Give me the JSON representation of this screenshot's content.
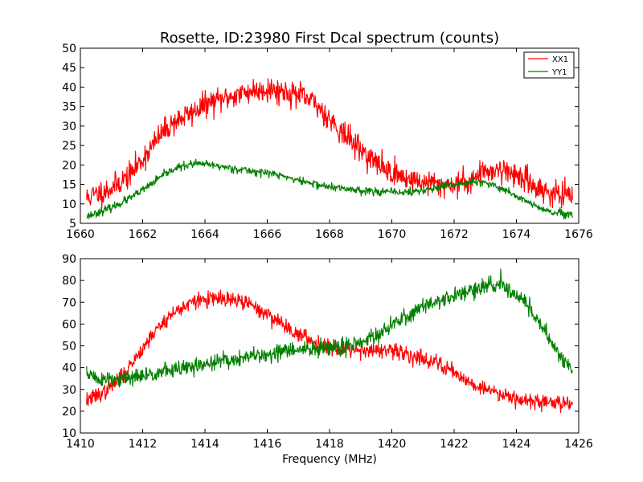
{
  "figure": {
    "title": "Rosette, ID:23980 First Dcal spectrum (counts)",
    "xlabel": "Frequency (MHz)"
  },
  "colors": {
    "XX1": "#ff0000",
    "YY1": "#008000"
  },
  "chart_data": [
    {
      "type": "line",
      "title": "Rosette, ID:23980 First Dcal spectrum (counts)",
      "xlabel": "",
      "ylabel": "",
      "xlim": [
        1660,
        1676
      ],
      "ylim": [
        5,
        50
      ],
      "xticks": [
        "1660",
        "1662",
        "1664",
        "1666",
        "1668",
        "1670",
        "1672",
        "1674",
        "1676"
      ],
      "yticks": [
        "5",
        "10",
        "15",
        "20",
        "25",
        "30",
        "35",
        "40",
        "45",
        "50"
      ],
      "legend": {
        "placement": "top-right",
        "entries": [
          "XX1",
          "YY1"
        ]
      },
      "grid": false,
      "x_start": 1660.2,
      "x_end": 1675.8,
      "series": [
        {
          "name": "XX1",
          "color": "#ff0000",
          "profile": [
            [
              1660.2,
              11.5
            ],
            [
              1661.0,
              14.0
            ],
            [
              1661.6,
              17.5
            ],
            [
              1662.0,
              21.5
            ],
            [
              1662.6,
              28.0
            ],
            [
              1663.0,
              31.0
            ],
            [
              1663.6,
              33.5
            ],
            [
              1664.0,
              35.5
            ],
            [
              1664.6,
              37.0
            ],
            [
              1665.0,
              38.0
            ],
            [
              1665.5,
              39.0
            ],
            [
              1666.0,
              39.5
            ],
            [
              1666.5,
              39.0
            ],
            [
              1667.0,
              38.0
            ],
            [
              1667.5,
              36.0
            ],
            [
              1668.0,
              32.0
            ],
            [
              1668.5,
              27.5
            ],
            [
              1669.0,
              24.0
            ],
            [
              1669.5,
              20.5
            ],
            [
              1670.0,
              18.0
            ],
            [
              1670.5,
              16.5
            ],
            [
              1671.0,
              15.5
            ],
            [
              1671.5,
              15.0
            ],
            [
              1672.0,
              15.0
            ],
            [
              1672.5,
              16.0
            ],
            [
              1673.0,
              18.5
            ],
            [
              1673.5,
              19.0
            ],
            [
              1674.0,
              17.5
            ],
            [
              1674.5,
              15.0
            ],
            [
              1675.0,
              13.0
            ],
            [
              1675.8,
              11.5
            ]
          ],
          "noise": 1.6,
          "seed": 11
        },
        {
          "name": "YY1",
          "color": "#008000",
          "profile": [
            [
              1660.2,
              6.8
            ],
            [
              1661.0,
              9.0
            ],
            [
              1661.6,
              11.5
            ],
            [
              1662.0,
              13.5
            ],
            [
              1662.6,
              17.0
            ],
            [
              1663.0,
              19.0
            ],
            [
              1663.6,
              20.3
            ],
            [
              1664.0,
              20.2
            ],
            [
              1664.6,
              19.5
            ],
            [
              1665.0,
              19.0
            ],
            [
              1665.6,
              18.3
            ],
            [
              1666.0,
              18.0
            ],
            [
              1666.6,
              17.0
            ],
            [
              1667.0,
              16.0
            ],
            [
              1667.6,
              15.0
            ],
            [
              1668.0,
              14.3
            ],
            [
              1669.0,
              13.5
            ],
            [
              1670.0,
              13.0
            ],
            [
              1670.6,
              13.0
            ],
            [
              1671.0,
              13.5
            ],
            [
              1671.6,
              14.3
            ],
            [
              1672.0,
              15.0
            ],
            [
              1672.6,
              15.6
            ],
            [
              1673.0,
              15.3
            ],
            [
              1673.6,
              13.8
            ],
            [
              1674.0,
              12.0
            ],
            [
              1674.6,
              9.5
            ],
            [
              1675.0,
              8.0
            ],
            [
              1675.8,
              7.0
            ]
          ],
          "noise": 0.5,
          "seed": 23
        }
      ]
    },
    {
      "type": "line",
      "title": "",
      "xlabel": "Frequency (MHz)",
      "ylabel": "",
      "xlim": [
        1410,
        1426
      ],
      "ylim": [
        10,
        90
      ],
      "xticks": [
        "1410",
        "1412",
        "1414",
        "1416",
        "1418",
        "1420",
        "1422",
        "1424",
        "1426"
      ],
      "yticks": [
        "10",
        "20",
        "30",
        "40",
        "50",
        "60",
        "70",
        "80",
        "90"
      ],
      "grid": false,
      "x_start": 1410.2,
      "x_end": 1425.8,
      "series": [
        {
          "name": "XX1",
          "color": "#ff0000",
          "profile": [
            [
              1410.2,
              25
            ],
            [
              1410.8,
              29
            ],
            [
              1411.3,
              35
            ],
            [
              1411.8,
              45
            ],
            [
              1412.3,
              55
            ],
            [
              1412.8,
              63
            ],
            [
              1413.3,
              68
            ],
            [
              1413.8,
              71
            ],
            [
              1414.3,
              71.5
            ],
            [
              1414.8,
              71
            ],
            [
              1415.3,
              70
            ],
            [
              1415.8,
              66
            ],
            [
              1416.3,
              62
            ],
            [
              1416.8,
              57
            ],
            [
              1417.3,
              53
            ],
            [
              1417.8,
              50
            ],
            [
              1418.3,
              49
            ],
            [
              1418.8,
              48.5
            ],
            [
              1419.3,
              48
            ],
            [
              1419.8,
              47.5
            ],
            [
              1420.3,
              47
            ],
            [
              1420.8,
              45
            ],
            [
              1421.3,
              43
            ],
            [
              1421.8,
              40
            ],
            [
              1422.3,
              35
            ],
            [
              1422.8,
              31
            ],
            [
              1423.3,
              29
            ],
            [
              1423.8,
              27
            ],
            [
              1424.3,
              25
            ],
            [
              1424.8,
              24
            ],
            [
              1425.8,
              24
            ]
          ],
          "noise": 1.8,
          "seed": 37
        },
        {
          "name": "YY1",
          "color": "#008000",
          "profile": [
            [
              1410.2,
              38
            ],
            [
              1410.5,
              35
            ],
            [
              1411.0,
              34
            ],
            [
              1411.5,
              35
            ],
            [
              1412.0,
              36
            ],
            [
              1412.5,
              38
            ],
            [
              1413.0,
              39
            ],
            [
              1413.5,
              40
            ],
            [
              1414.0,
              41.5
            ],
            [
              1414.5,
              43
            ],
            [
              1415.0,
              44
            ],
            [
              1415.5,
              45
            ],
            [
              1416.0,
              46
            ],
            [
              1416.5,
              47.5
            ],
            [
              1417.0,
              48
            ],
            [
              1417.5,
              48.5
            ],
            [
              1418.0,
              49
            ],
            [
              1418.5,
              50
            ],
            [
              1419.0,
              52
            ],
            [
              1419.5,
              55
            ],
            [
              1420.0,
              59
            ],
            [
              1420.5,
              64
            ],
            [
              1421.0,
              68
            ],
            [
              1421.5,
              71
            ],
            [
              1422.0,
              73
            ],
            [
              1422.5,
              75
            ],
            [
              1423.0,
              77
            ],
            [
              1423.5,
              78
            ],
            [
              1424.0,
              74
            ],
            [
              1424.5,
              66
            ],
            [
              1425.0,
              55
            ],
            [
              1425.5,
              44
            ],
            [
              1425.8,
              38
            ]
          ],
          "noise": 1.9,
          "seed": 51
        }
      ]
    }
  ]
}
